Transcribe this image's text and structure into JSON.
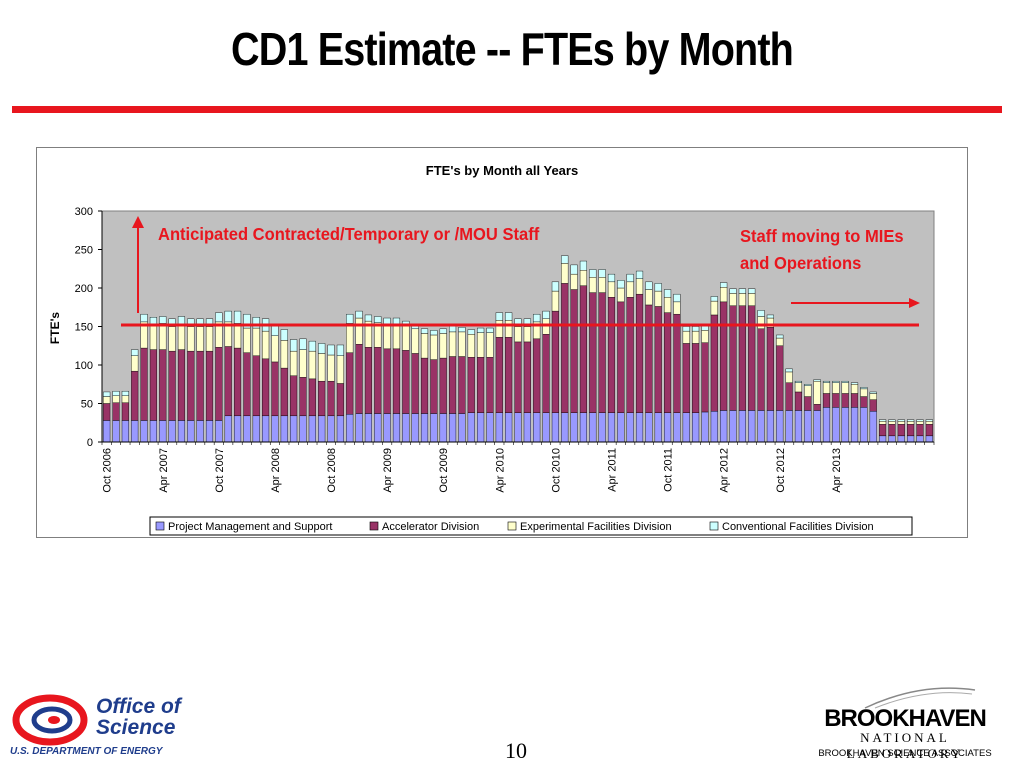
{
  "slide": {
    "title": "CD1 Estimate -- FTEs by Month",
    "page_number": "10"
  },
  "colors": {
    "title_rule": "#e8161e",
    "pm": "#9999ff",
    "accel": "#993366",
    "exp": "#ffffcc",
    "conv": "#ccffff",
    "plot_bg": "#c0c0c0",
    "reference_line": "#e8161e",
    "annotation": "#e8161e"
  },
  "annotations": {
    "left": "Anticipated Contracted/Temporary or /MOU Staff",
    "right_line1": "Staff moving to MIEs",
    "right_line2": "and Operations"
  },
  "logos": {
    "doe_line1": "Office of",
    "doe_line2": "Science",
    "doe_caption": "U.S. DEPARTMENT OF ENERGY",
    "bnl_name": "BROOKHAVEN",
    "bnl_sub": "NATIONAL LABORATORY",
    "bnl_assoc": "BROOKHAVEN SCIENCE ASSOCIATES"
  },
  "chart_data": {
    "type": "bar",
    "stacked": true,
    "title": "FTE's by Month all Years",
    "xlabel": "",
    "ylabel": "FTE's",
    "ylim": [
      0,
      300
    ],
    "yticks": [
      0,
      50,
      100,
      150,
      200,
      250,
      300
    ],
    "grid": false,
    "legend_position": "bottom",
    "reference_line_value": 152,
    "x_tick_labels": [
      "Oct 2006",
      "Apr 2007",
      "Oct 2007",
      "Apr 2008",
      "Oct 2008",
      "Apr 2009",
      "Oct 2009",
      "Apr 2010",
      "Oct 2010",
      "Apr 2011",
      "Oct 2011",
      "Apr 2012",
      "Oct 2012",
      "Apr 2013"
    ],
    "x_tick_every": 6,
    "series": [
      {
        "name": "Project Management and Support",
        "values": [
          28,
          28,
          28,
          28,
          28,
          28,
          28,
          28,
          28,
          28,
          28,
          28,
          28,
          34,
          34,
          34,
          34,
          34,
          34,
          34,
          34,
          34,
          34,
          34,
          34,
          34,
          36,
          37,
          37,
          37,
          37,
          37,
          37,
          37,
          37,
          37,
          37,
          37,
          37,
          38,
          38,
          38,
          38,
          38,
          38,
          38,
          38,
          38,
          38,
          38,
          38,
          38,
          38,
          38,
          38,
          38,
          38,
          38,
          38,
          38,
          38,
          38,
          38,
          38,
          39,
          40,
          41,
          41,
          41,
          41,
          41,
          41,
          41,
          41,
          41,
          41,
          41,
          45,
          45,
          45,
          45,
          45,
          40,
          8,
          8,
          8,
          8,
          8,
          8
        ]
      },
      {
        "name": "Accelerator Division",
        "values": [
          22,
          23,
          23,
          64,
          94,
          92,
          92,
          90,
          92,
          90,
          90,
          90,
          95,
          90,
          88,
          82,
          78,
          74,
          70,
          62,
          52,
          50,
          48,
          45,
          45,
          42,
          80,
          90,
          86,
          86,
          84,
          84,
          82,
          78,
          72,
          70,
          72,
          74,
          74,
          72,
          72,
          72,
          98,
          98,
          92,
          92,
          96,
          102,
          132,
          168,
          160,
          165,
          156,
          156,
          150,
          144,
          150,
          154,
          140,
          138,
          130,
          128,
          90,
          90,
          90,
          125,
          141,
          136,
          136,
          136,
          106,
          108,
          84,
          36,
          24,
          18,
          8,
          18,
          18,
          18,
          18,
          14,
          15,
          15,
          15,
          15,
          15,
          15,
          15
        ]
      },
      {
        "name": "Experimental Facilities Division",
        "values": [
          9,
          9,
          9,
          20,
          34,
          32,
          34,
          32,
          33,
          32,
          32,
          32,
          33,
          32,
          32,
          32,
          36,
          36,
          34,
          36,
          32,
          36,
          36,
          36,
          34,
          36,
          38,
          34,
          34,
          32,
          32,
          32,
          32,
          32,
          32,
          32,
          32,
          32,
          32,
          30,
          32,
          32,
          22,
          22,
          20,
          20,
          22,
          20,
          26,
          26,
          20,
          20,
          20,
          20,
          20,
          18,
          20,
          20,
          20,
          20,
          20,
          16,
          16,
          16,
          16,
          18,
          19,
          16,
          16,
          16,
          16,
          12,
          10,
          14,
          12,
          14,
          30,
          14,
          14,
          14,
          12,
          10,
          8,
          4,
          4,
          4,
          4,
          4,
          4
        ]
      },
      {
        "name": "Conventional Facilities Division",
        "values": [
          6,
          6,
          6,
          8,
          10,
          10,
          9,
          10,
          10,
          10,
          10,
          10,
          12,
          14,
          16,
          18,
          14,
          16,
          13,
          14,
          15,
          14,
          13,
          13,
          13,
          14,
          12,
          9,
          8,
          8,
          8,
          8,
          6,
          6,
          6,
          6,
          6,
          8,
          6,
          6,
          6,
          6,
          10,
          10,
          10,
          10,
          10,
          10,
          12,
          10,
          12,
          12,
          10,
          10,
          10,
          10,
          10,
          10,
          10,
          10,
          10,
          10,
          6,
          6,
          6,
          6,
          6,
          6,
          6,
          6,
          8,
          4,
          4,
          4,
          2,
          2,
          2,
          2,
          2,
          2,
          2,
          2,
          2,
          2,
          2,
          2,
          2,
          2,
          2
        ]
      }
    ]
  }
}
